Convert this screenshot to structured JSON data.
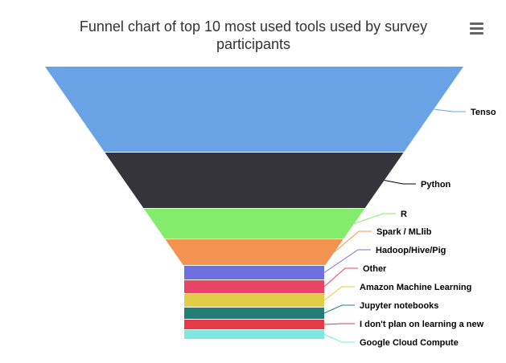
{
  "chart_data": {
    "type": "funnel",
    "title": "Funnel chart of top 10 most used tools used by survey participants",
    "categories": [
      "Tenso",
      "Python",
      "R",
      "Spark / MLlib",
      "Hadoop/Hive/Pig",
      "Other",
      "Amazon Machine Learning",
      "Jupyter notebooks",
      "I don't plan on learning a new",
      "Google Cloud Compute"
    ],
    "values": [
      107,
      70,
      38,
      33,
      18,
      17,
      17,
      15,
      13,
      12
    ],
    "colors": [
      "#6aa2e6",
      "#34343a",
      "#84ec6b",
      "#f2944f",
      "#6f6fe2",
      "#e94367",
      "#e2cd48",
      "#247d76",
      "#e33a48",
      "#7fe8de"
    ],
    "legend": "none",
    "grid": false
  },
  "toolbar": {
    "menu_icon": "hamburger-menu-icon"
  }
}
